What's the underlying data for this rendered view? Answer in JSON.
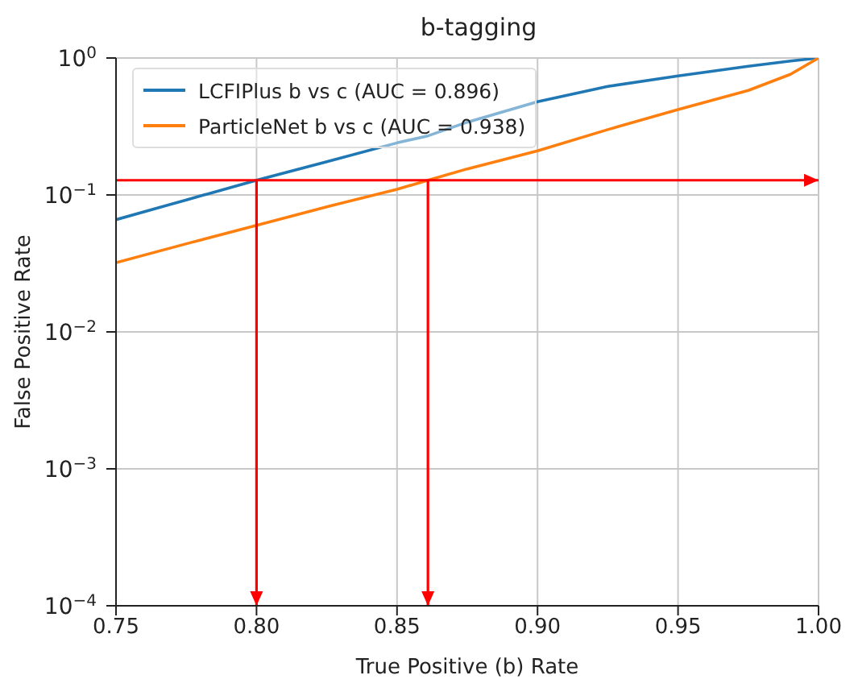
{
  "chart_data": {
    "type": "line",
    "title": "b-tagging",
    "xlabel": "True Positive (b) Rate",
    "ylabel": "False Positive Rate",
    "x": [
      0.75,
      0.775,
      0.8,
      0.825,
      0.85,
      0.861,
      0.875,
      0.9,
      0.925,
      0.95,
      0.975,
      0.99,
      1.0
    ],
    "series": [
      {
        "name": "LCFIPlus b vs c (AUC = 0.896)",
        "color": "#1f77b4",
        "values": [
          0.066,
          0.092,
          0.128,
          0.175,
          0.24,
          0.27,
          0.34,
          0.48,
          0.62,
          0.74,
          0.87,
          0.95,
          1.0
        ]
      },
      {
        "name": "ParticleNet b vs c (AUC = 0.938)",
        "color": "#ff7f0e",
        "values": [
          0.032,
          0.044,
          0.06,
          0.082,
          0.11,
          0.128,
          0.155,
          0.21,
          0.3,
          0.42,
          0.58,
          0.76,
          1.0
        ]
      }
    ],
    "log": "y",
    "xlim": [
      0.75,
      1.0
    ],
    "ylim": [
      0.0001,
      1
    ],
    "xticks": [
      {
        "value": 0.75,
        "label": "0.75"
      },
      {
        "value": 0.8,
        "label": "0.80"
      },
      {
        "value": 0.85,
        "label": "0.85"
      },
      {
        "value": 0.9,
        "label": "0.90"
      },
      {
        "value": 0.95,
        "label": "0.95"
      },
      {
        "value": 1.0,
        "label": "1.00"
      }
    ],
    "yticks": [
      {
        "value": 0.0001,
        "label": "10$^{−4}$"
      },
      {
        "value": 0.001,
        "label": "10$^{−3}$"
      },
      {
        "value": 0.01,
        "label": "10$^{−2}$"
      },
      {
        "value": 0.1,
        "label": "10$^{−1}$"
      },
      {
        "value": 1,
        "label": "10$^{0}$"
      }
    ],
    "ref_lines": [
      {
        "axis": "y",
        "value": 0.128,
        "color": "#ff0000"
      },
      {
        "axis": "x",
        "value": 0.8,
        "color": "#ff0000"
      },
      {
        "axis": "x",
        "value": 0.861,
        "color": "#ff0000"
      }
    ],
    "grid": true,
    "legend": "top left",
    "marker": "none",
    "line_style": "solid"
  }
}
